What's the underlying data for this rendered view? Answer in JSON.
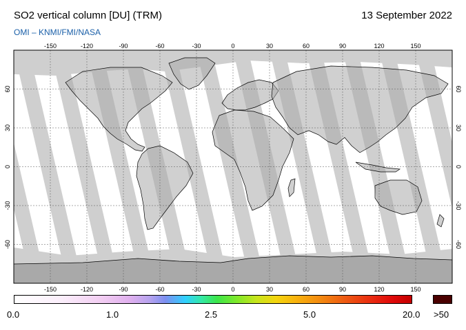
{
  "header": {
    "title": "SO2 vertical column [DU] (TRM)",
    "date": "13 September 2022",
    "credit": "OMI  –  KNMI/FMI/NASA"
  },
  "map": {
    "projection": "equirectangular",
    "lon_ticks": [
      "-150",
      "-120",
      "-90",
      "-60",
      "-30",
      "0",
      "30",
      "60",
      "90",
      "120",
      "150"
    ],
    "lat_ticks": [
      "60",
      "30",
      "0",
      "-30",
      "-60"
    ],
    "colors": {
      "no_data": "#cfcfcf",
      "land_no_data": "#a9a9a9",
      "coastline": "#000000",
      "gridline": "#555555",
      "swath_background": "#ffffff"
    }
  },
  "colorbar": {
    "labels": [
      "0.0",
      "1.0",
      "2.5",
      "5.0",
      "20.0"
    ],
    "overflow_label": ">50",
    "overflow_color": "#4a0000"
  }
}
